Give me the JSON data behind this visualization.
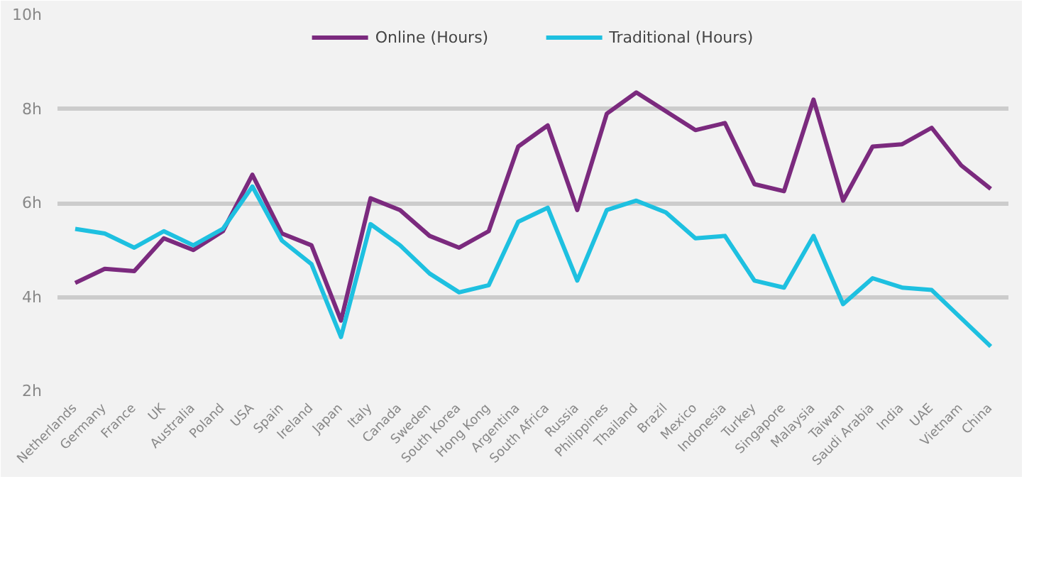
{
  "chart_data": {
    "type": "line",
    "categories": [
      "Netherlands",
      "Germany",
      "France",
      "UK",
      "Australia",
      "Poland",
      "USA",
      "Spain",
      "Ireland",
      "Japan",
      "Italy",
      "Canada",
      "Sweden",
      "South Korea",
      "Hong Kong",
      "Argentina",
      "South Africa",
      "Russia",
      "Philippines",
      "Thailand",
      "Brazil",
      "Mexico",
      "Indonesia",
      "Turkey",
      "Singapore",
      "Malaysia",
      "Taiwan",
      "Saudi Arabia",
      "India",
      "UAE",
      "Vietnam",
      "China"
    ],
    "series": [
      {
        "name": "Online (Hours)",
        "color": "#7b2a7e",
        "values": [
          4.3,
          4.6,
          4.55,
          5.25,
          5.0,
          5.4,
          6.6,
          5.35,
          5.1,
          3.5,
          6.1,
          5.85,
          5.3,
          5.05,
          5.4,
          7.2,
          7.65,
          5.85,
          7.9,
          8.35,
          7.95,
          7.55,
          7.7,
          6.4,
          6.25,
          8.2,
          6.05,
          7.2,
          7.25,
          7.6,
          6.8,
          6.3
        ]
      },
      {
        "name": "Traditional (Hours)",
        "color": "#1ec0e0",
        "values": [
          5.45,
          5.35,
          5.05,
          5.4,
          5.1,
          5.45,
          6.35,
          5.2,
          4.7,
          3.15,
          5.55,
          5.1,
          4.5,
          4.1,
          4.25,
          5.6,
          5.9,
          4.35,
          5.85,
          6.05,
          5.8,
          5.25,
          5.3,
          4.35,
          4.2,
          5.3,
          3.85,
          4.4,
          4.2,
          4.15,
          3.55,
          2.95
        ]
      }
    ],
    "ylim": [
      2,
      10
    ],
    "yticks": [
      {
        "value": 2,
        "label": "2h"
      },
      {
        "value": 4,
        "label": "4h"
      },
      {
        "value": 6,
        "label": "6h"
      },
      {
        "value": 8,
        "label": "8h"
      },
      {
        "value": 10,
        "label": "10h"
      }
    ],
    "grid": "y",
    "legend": "top",
    "marker": "none",
    "line_style": "solid"
  }
}
